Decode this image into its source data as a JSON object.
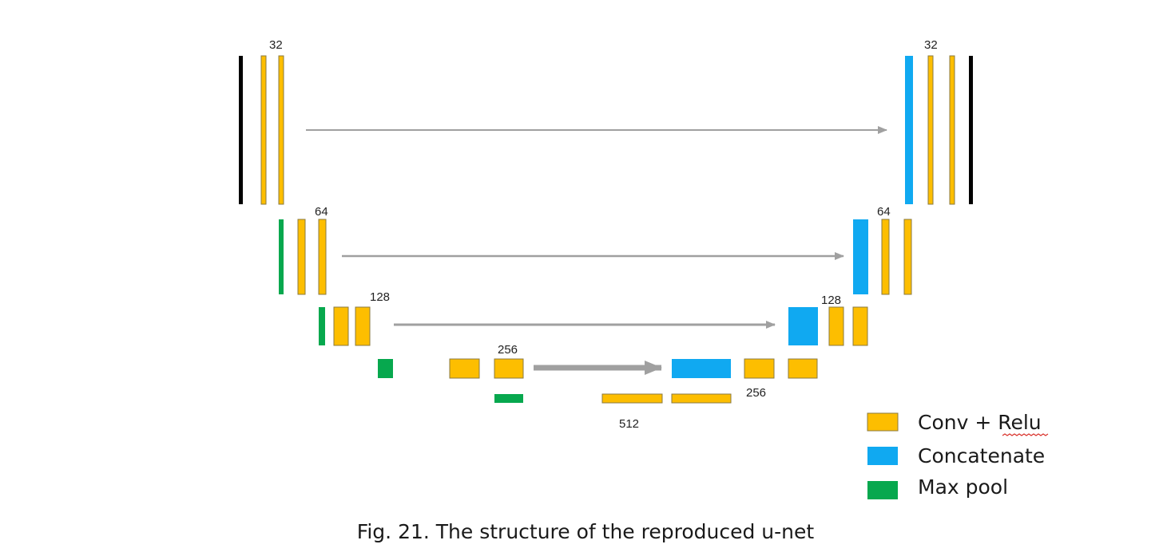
{
  "colors": {
    "conv": "#FDBE00",
    "concat": "#10A9F1",
    "pool": "#07A84E",
    "input_output": "#000000",
    "skip_arrow": "#a0a0a0",
    "block_border": "#8a7a40"
  },
  "diagram": {
    "labels": {
      "enc_1": "32",
      "enc_2": "64",
      "enc_3": "128",
      "enc_4": "256",
      "bottleneck": "512",
      "dec_4": "256",
      "dec_3": "128",
      "dec_2": "64",
      "dec_1": "32"
    }
  },
  "legend": {
    "items": [
      {
        "label": "Conv + Relu",
        "color": "#FDBE00"
      },
      {
        "label": "Concatenate",
        "color": "#10A9F1"
      },
      {
        "label": "Max pool",
        "color": "#07A84E"
      }
    ]
  },
  "caption": "Fig. 21. The structure of the reproduced u-net"
}
